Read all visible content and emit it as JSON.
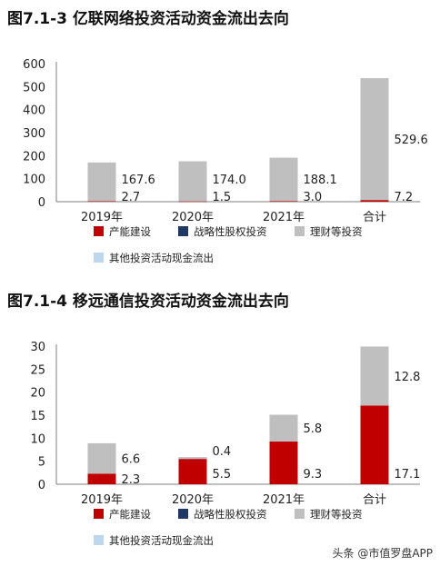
{
  "charts": [
    {
      "title": "图7.1-3 亿联网络投资活动资金流出去向",
      "chart_data": {
        "type": "bar",
        "stacked": true,
        "categories": [
          "2019年",
          "2020年",
          "2021年",
          "合计"
        ],
        "ylim": [
          0,
          600
        ],
        "yticks": [
          0,
          100,
          200,
          300,
          400,
          500,
          600
        ],
        "series": [
          {
            "name": "产能建设",
            "color": "#c00000",
            "values": [
              2.7,
              1.5,
              3.0,
              7.2
            ]
          },
          {
            "name": "战略性股权投资",
            "color": "#1f3864",
            "values": [
              0,
              0,
              0,
              0
            ]
          },
          {
            "name": "理财等投资",
            "color": "#bfbfbf",
            "values": [
              167.6,
              174.0,
              188.1,
              529.6
            ]
          },
          {
            "name": "其他投资活动现金流出",
            "color": "#bdd7ee",
            "values": [
              0,
              0,
              0,
              0
            ]
          }
        ],
        "data_labels": [
          {
            "category": 0,
            "series": 0,
            "text": "2.7"
          },
          {
            "category": 0,
            "series": 2,
            "text": "167.6"
          },
          {
            "category": 1,
            "series": 0,
            "text": "1.5"
          },
          {
            "category": 1,
            "series": 2,
            "text": "174.0"
          },
          {
            "category": 2,
            "series": 0,
            "text": "3.0"
          },
          {
            "category": 2,
            "series": 2,
            "text": "188.1"
          },
          {
            "category": 3,
            "series": 0,
            "text": "7.2"
          },
          {
            "category": 3,
            "series": 2,
            "text": "529.6"
          }
        ],
        "grid": false,
        "legend": "bottom"
      }
    },
    {
      "title": "图7.1-4 移远通信投资活动资金流出去向",
      "chart_data": {
        "type": "bar",
        "stacked": true,
        "categories": [
          "2019年",
          "2020年",
          "2021年",
          "合计"
        ],
        "ylim": [
          0,
          30
        ],
        "yticks": [
          0,
          5,
          10,
          15,
          20,
          25,
          30
        ],
        "series": [
          {
            "name": "产能建设",
            "color": "#c00000",
            "values": [
              2.3,
              5.5,
              9.3,
              17.1
            ]
          },
          {
            "name": "战略性股权投资",
            "color": "#1f3864",
            "values": [
              0,
              0,
              0,
              0
            ]
          },
          {
            "name": "理财等投资",
            "color": "#bfbfbf",
            "values": [
              6.6,
              0.4,
              5.8,
              12.8
            ]
          },
          {
            "name": "其他投资活动现金流出",
            "color": "#bdd7ee",
            "values": [
              0,
              0,
              0,
              0
            ]
          }
        ],
        "data_labels": [
          {
            "category": 0,
            "series": 0,
            "text": "2.3"
          },
          {
            "category": 0,
            "series": 2,
            "text": "6.6"
          },
          {
            "category": 1,
            "series": 0,
            "text": "5.5"
          },
          {
            "category": 1,
            "series": 2,
            "text": "0.4"
          },
          {
            "category": 2,
            "series": 0,
            "text": "9.3"
          },
          {
            "category": 2,
            "series": 2,
            "text": "5.8"
          },
          {
            "category": 3,
            "series": 0,
            "text": "17.1"
          },
          {
            "category": 3,
            "series": 2,
            "text": "12.8"
          }
        ],
        "grid": false,
        "legend": "bottom"
      }
    }
  ],
  "watermark": "头条 @市值罗盘APP"
}
